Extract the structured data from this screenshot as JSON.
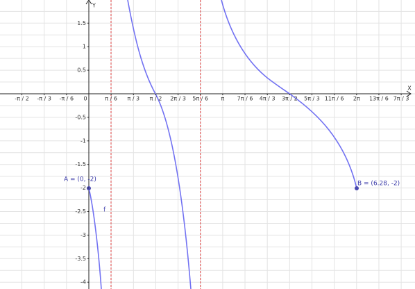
{
  "axes": {
    "x_label": "X",
    "y_label": "Y",
    "x_ticks": [
      "-π / 2",
      "-π / 3",
      "-π / 6",
      "0",
      "π / 6",
      "π / 3",
      "π / 2",
      "2π / 3",
      "5π / 6",
      "π",
      "7π / 6",
      "4π / 3",
      "3π / 2",
      "5π / 3",
      "11π / 6",
      "2π",
      "13π / 6",
      "7π / 3"
    ],
    "y_ticks": [
      "1.5",
      "1",
      "0.5",
      "-0.5",
      "-1",
      "-1.5",
      "-2",
      "-2.5",
      "-3",
      "-3.5",
      "-4"
    ]
  },
  "function_label": "f",
  "points": [
    {
      "label": "A = (0, -2)"
    },
    {
      "label": "B = (6.28, -2)"
    }
  ]
}
